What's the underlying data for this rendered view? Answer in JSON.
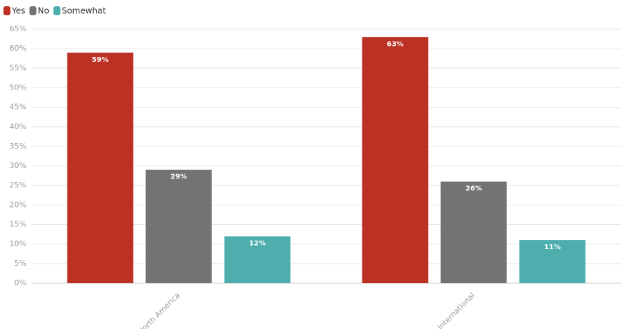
{
  "chart_data": {
    "type": "bar",
    "categories": [
      "North America",
      "International"
    ],
    "series": [
      {
        "name": "Yes",
        "color": "#bb3124",
        "values": [
          59,
          63
        ],
        "value_labels": [
          "59%",
          "63%"
        ]
      },
      {
        "name": "No",
        "color": "#737373",
        "values": [
          29,
          26
        ],
        "value_labels": [
          "29%",
          "26%"
        ]
      },
      {
        "name": "Somewhat",
        "color": "#4eaeae",
        "values": [
          12,
          11
        ],
        "value_labels": [
          "12%",
          "11%"
        ]
      }
    ],
    "ylim": [
      0,
      65
    ],
    "yticks": [
      {
        "value": 0,
        "label": "0%"
      },
      {
        "value": 5,
        "label": "5%"
      },
      {
        "value": 10,
        "label": "10%"
      },
      {
        "value": 15,
        "label": "15%"
      },
      {
        "value": 20,
        "label": "20%"
      },
      {
        "value": 25,
        "label": "25%"
      },
      {
        "value": 30,
        "label": "30%"
      },
      {
        "value": 35,
        "label": "35%"
      },
      {
        "value": 40,
        "label": "40%"
      },
      {
        "value": 45,
        "label": "45%"
      },
      {
        "value": 50,
        "label": "50%"
      },
      {
        "value": 55,
        "label": "55%"
      },
      {
        "value": 60,
        "label": "60%"
      },
      {
        "value": 65,
        "label": "65%"
      }
    ],
    "grid": true,
    "legend": "top-left"
  }
}
